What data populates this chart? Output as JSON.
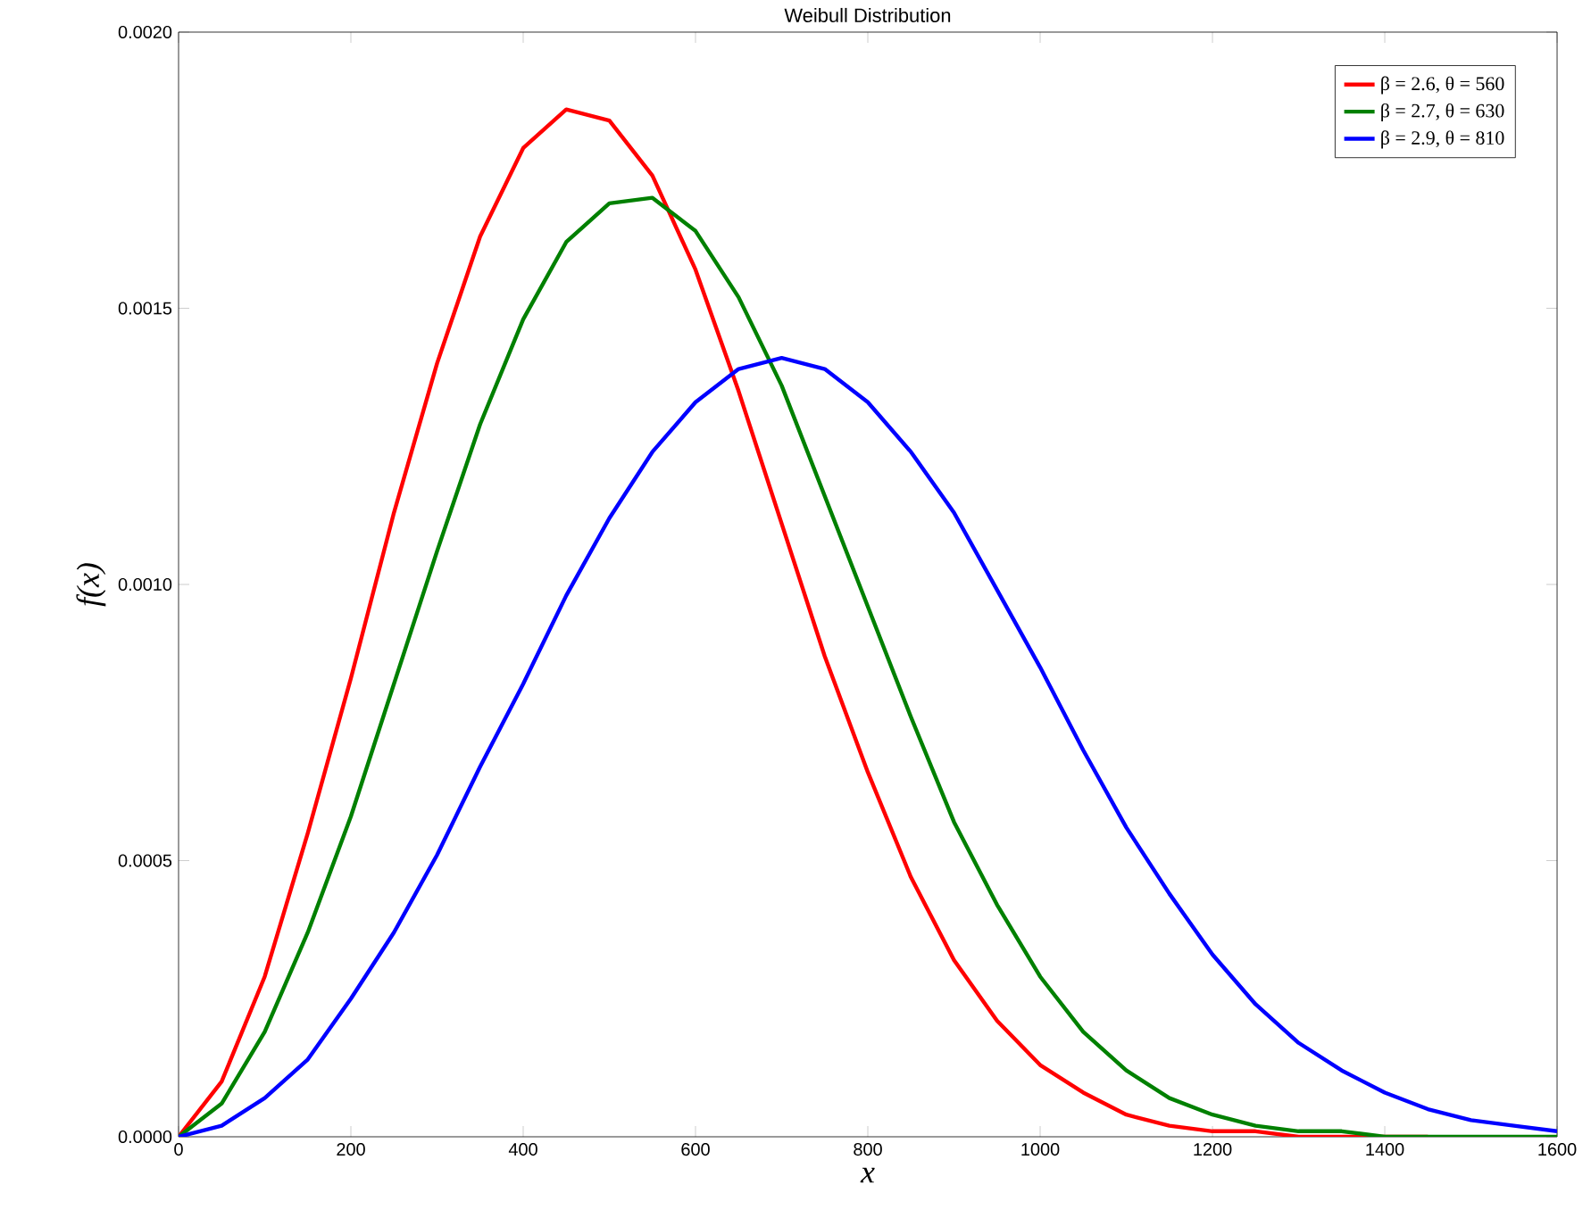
{
  "chart_data": {
    "type": "line",
    "title": "Weibull Distribution",
    "xlabel": "x",
    "ylabel": "f(x)",
    "xlim": [
      0,
      1600
    ],
    "xticks": [
      0,
      200,
      400,
      600,
      800,
      1000,
      1200,
      1400,
      1600
    ],
    "ylim": [
      0,
      0.002
    ],
    "yticks": [
      {
        "value": 0,
        "label": "0.0000"
      },
      {
        "value": 0.0005,
        "label": "0.0005"
      },
      {
        "value": 0.001,
        "label": "0.0010"
      },
      {
        "value": 0.0015,
        "label": "0.0015"
      },
      {
        "value": 0.002,
        "label": "0.0020"
      }
    ],
    "x": [
      0,
      50,
      100,
      150,
      200,
      250,
      300,
      350,
      400,
      450,
      500,
      550,
      600,
      650,
      700,
      750,
      800,
      850,
      900,
      950,
      1000,
      1050,
      1100,
      1150,
      1200,
      1250,
      1300,
      1350,
      1400,
      1450,
      1500,
      1550,
      1600
    ],
    "series": [
      {
        "name": "β = 2.6, θ = 560",
        "color": "#ff0000",
        "values": [
          0,
          0.0001,
          0.00029,
          0.00055,
          0.00083,
          0.00113,
          0.0014,
          0.00163,
          0.00179,
          0.00186,
          0.00184,
          0.00174,
          0.00157,
          0.00135,
          0.00111,
          0.00087,
          0.00066,
          0.00047,
          0.00032,
          0.00021,
          0.00013,
          8e-05,
          4e-05,
          2e-05,
          1e-05,
          1e-05,
          0,
          0,
          0,
          0,
          null,
          null,
          null
        ]
      },
      {
        "name": "β = 2.7, θ = 630",
        "color": "#008000",
        "values": [
          0,
          6e-05,
          0.00019,
          0.00037,
          0.00058,
          0.00082,
          0.00106,
          0.00129,
          0.00148,
          0.00162,
          0.00169,
          0.0017,
          0.00164,
          0.00152,
          0.00136,
          0.00116,
          0.00096,
          0.00076,
          0.00057,
          0.00042,
          0.00029,
          0.00019,
          0.00012,
          7e-05,
          4e-05,
          2e-05,
          1e-05,
          1e-05,
          0,
          0,
          0,
          0,
          0
        ]
      },
      {
        "name": "β = 2.9, θ = 810",
        "color": "#0000ff",
        "values": [
          0,
          2e-05,
          7e-05,
          0.00014,
          0.00025,
          0.00037,
          0.00051,
          0.00067,
          0.00082,
          0.00098,
          0.00112,
          0.00124,
          0.00133,
          0.00139,
          0.00141,
          0.00139,
          0.00133,
          0.00124,
          0.00113,
          0.00099,
          0.00085,
          0.0007,
          0.00056,
          0.00044,
          0.00033,
          0.00024,
          0.00017,
          0.00012,
          8e-05,
          5e-05,
          3e-05,
          2e-05,
          1e-05
        ]
      }
    ],
    "legend": "top right",
    "grid": false,
    "marker": "none",
    "line_style": "solid"
  }
}
